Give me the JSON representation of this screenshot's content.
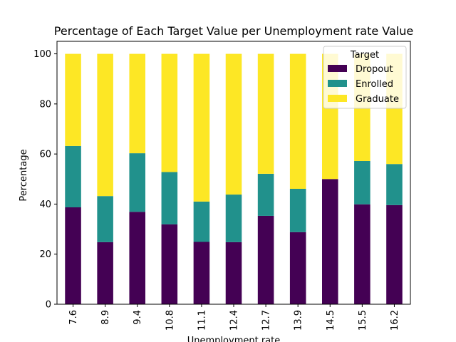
{
  "chart_data": {
    "type": "bar",
    "stacked": true,
    "title": "Percentage of Each Target Value per Unemployment rate Value",
    "xlabel": "Unemployment rate",
    "ylabel": "Percentage",
    "ylim": [
      0,
      105
    ],
    "yticks": [
      0,
      20,
      40,
      60,
      80,
      100
    ],
    "categories": [
      "7.6",
      "8.9",
      "9.4",
      "10.8",
      "11.1",
      "12.4",
      "12.7",
      "13.9",
      "14.5",
      "15.5",
      "16.2"
    ],
    "series": [
      {
        "name": "Dropout",
        "color": "#440154",
        "values": [
          38.7,
          24.8,
          36.9,
          31.9,
          24.9,
          24.8,
          35.3,
          28.8,
          50.0,
          39.9,
          39.6
        ]
      },
      {
        "name": "Enrolled",
        "color": "#21918c",
        "values": [
          24.5,
          18.4,
          23.4,
          20.9,
          16.1,
          19.0,
          16.8,
          17.3,
          0.0,
          17.3,
          16.4
        ]
      },
      {
        "name": "Graduate",
        "color": "#fde725",
        "values": [
          36.8,
          56.8,
          39.7,
          47.2,
          59.0,
          56.2,
          47.9,
          53.9,
          50.0,
          42.8,
          44.0
        ]
      }
    ],
    "legend": {
      "title": "Target",
      "position": "top-right"
    },
    "grid": false
  }
}
